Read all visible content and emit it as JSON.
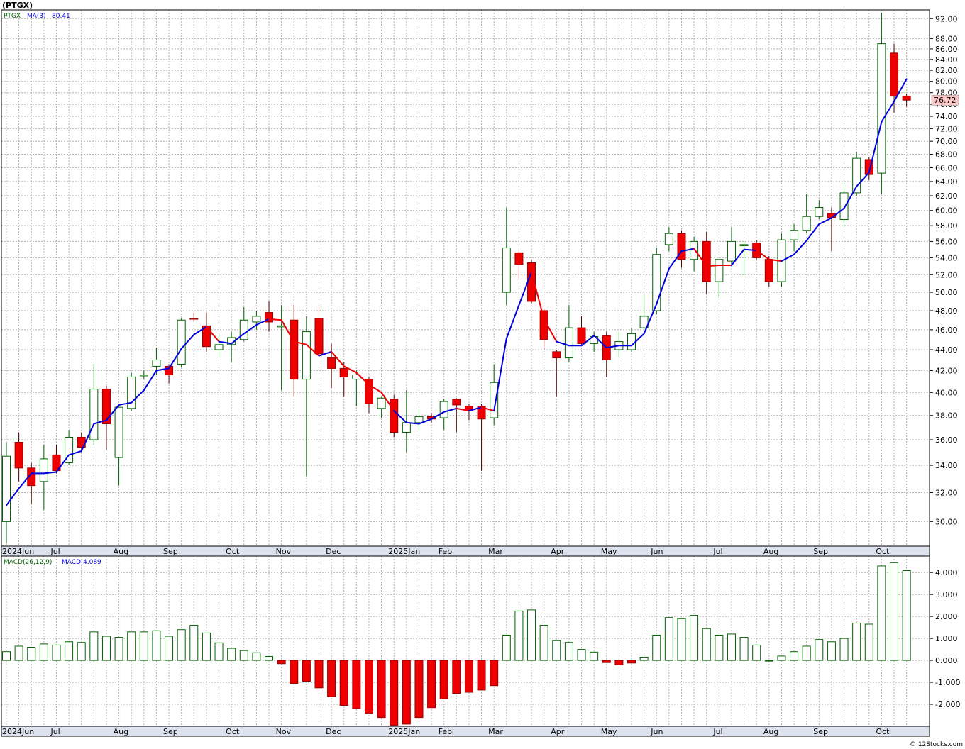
{
  "title": "(PTGX)",
  "legend": {
    "symbol": "PTGX",
    "ma_label": "MA(3)",
    "ma_value": "80.41",
    "macd_label": "MACD(26,12,9)",
    "macd_value_label": "MACD:4.089"
  },
  "last_price_tag": "76.72",
  "footer": "© 12Stocks.com",
  "colors": {
    "up": "#006400",
    "down": "#ee0000",
    "ma_up": "#0000dd",
    "ma_down": "#ee0000",
    "price_tag_bg": "#ffc8c8"
  },
  "chart_data": [
    {
      "type": "candlestick",
      "name": "price",
      "ylim": [
        28.4,
        93.8
      ],
      "scale": "log",
      "y_ticks": [
        "30.00",
        "32.00",
        "34.00",
        "36.00",
        "38.00",
        "40.00",
        "42.00",
        "44.00",
        "46.00",
        "48.00",
        "50.00",
        "52.00",
        "54.00",
        "56.00",
        "58.00",
        "60.00",
        "62.00",
        "64.00",
        "66.00",
        "68.00",
        "70.00",
        "72.00",
        "74.00",
        "76.00",
        "78.00",
        "80.00",
        "82.00",
        "84.00",
        "86.00",
        "88.00",
        "92.00"
      ],
      "month_labels": [
        {
          "label": "2024Jun",
          "week": 0
        },
        {
          "label": "Jul",
          "week": 4
        },
        {
          "label": "Aug",
          "week": 9
        },
        {
          "label": "Sep",
          "week": 13
        },
        {
          "label": "Oct",
          "week": 18
        },
        {
          "label": "Nov",
          "week": 22
        },
        {
          "label": "Dec",
          "week": 26
        },
        {
          "label": "2025Jan",
          "week": 31
        },
        {
          "label": "Feb",
          "week": 35
        },
        {
          "label": "Mar",
          "week": 39
        },
        {
          "label": "Apr",
          "week": 44
        },
        {
          "label": "May",
          "week": 48
        },
        {
          "label": "Jun",
          "week": 52
        },
        {
          "label": "Jul",
          "week": 57
        },
        {
          "label": "Aug",
          "week": 61
        },
        {
          "label": "Sep",
          "week": 65
        },
        {
          "label": "Oct",
          "week": 70
        }
      ],
      "ohlc": [
        [
          30.0,
          35.8,
          28.6,
          34.7
        ],
        [
          35.8,
          36.6,
          32.8,
          33.8
        ],
        [
          33.8,
          34.2,
          31.2,
          32.5
        ],
        [
          32.8,
          35.6,
          30.8,
          34.5
        ],
        [
          34.8,
          35.6,
          33.4,
          33.6
        ],
        [
          34.2,
          36.8,
          34.0,
          36.2
        ],
        [
          36.2,
          36.6,
          35.0,
          35.4
        ],
        [
          36.0,
          42.6,
          35.6,
          40.3
        ],
        [
          40.3,
          40.6,
          35.2,
          37.3
        ],
        [
          34.6,
          38.8,
          32.5,
          38.7
        ],
        [
          38.6,
          41.8,
          38.4,
          41.4
        ],
        [
          41.6,
          42.0,
          41.2,
          41.6
        ],
        [
          42.4,
          44.2,
          41.6,
          43.0
        ],
        [
          42.4,
          42.6,
          40.8,
          41.6
        ],
        [
          42.6,
          47.2,
          42.3,
          47.0
        ],
        [
          47.2,
          47.8,
          46.8,
          47.1
        ],
        [
          46.4,
          47.8,
          43.8,
          44.3
        ],
        [
          44.0,
          45.6,
          43.2,
          44.5
        ],
        [
          44.5,
          45.8,
          42.8,
          45.2
        ],
        [
          45.0,
          48.4,
          44.8,
          47.0
        ],
        [
          46.8,
          48.0,
          46.0,
          47.4
        ],
        [
          47.8,
          49.0,
          45.8,
          46.8
        ],
        [
          46.4,
          48.6,
          40.2,
          46.4
        ],
        [
          47.0,
          48.6,
          39.6,
          41.2
        ],
        [
          41.2,
          47.4,
          33.2,
          45.8
        ],
        [
          47.2,
          48.4,
          43.4,
          43.6
        ],
        [
          43.2,
          44.6,
          40.4,
          42.2
        ],
        [
          42.2,
          42.8,
          39.6,
          41.4
        ],
        [
          41.2,
          42.0,
          38.8,
          41.6
        ],
        [
          41.2,
          41.4,
          38.2,
          39.0
        ],
        [
          38.6,
          39.6,
          37.8,
          39.5
        ],
        [
          39.4,
          39.8,
          36.2,
          36.6
        ],
        [
          36.6,
          40.2,
          35.0,
          37.4
        ],
        [
          37.4,
          38.6,
          36.8,
          37.9
        ],
        [
          37.9,
          38.2,
          37.4,
          37.7
        ],
        [
          37.8,
          39.4,
          36.8,
          39.2
        ],
        [
          39.4,
          39.5,
          36.6,
          38.9
        ],
        [
          38.8,
          39.0,
          37.6,
          38.4
        ],
        [
          38.8,
          39.0,
          33.6,
          37.7
        ],
        [
          37.8,
          42.6,
          37.2,
          40.9
        ],
        [
          50.0,
          60.4,
          48.6,
          55.2
        ],
        [
          54.6,
          55.0,
          51.4,
          53.2
        ],
        [
          53.4,
          53.8,
          48.8,
          49.0
        ],
        [
          48.0,
          48.2,
          44.0,
          45.0
        ],
        [
          43.8,
          44.0,
          39.6,
          43.2
        ],
        [
          43.2,
          48.6,
          42.8,
          46.2
        ],
        [
          46.2,
          47.4,
          44.4,
          44.6
        ],
        [
          44.6,
          45.8,
          43.8,
          45.3
        ],
        [
          45.4,
          45.8,
          41.4,
          43.0
        ],
        [
          44.0,
          45.8,
          43.2,
          44.8
        ],
        [
          44.0,
          46.2,
          43.8,
          45.6
        ],
        [
          46.2,
          49.8,
          46.0,
          47.4
        ],
        [
          48.0,
          55.2,
          47.6,
          54.4
        ],
        [
          55.6,
          57.8,
          54.8,
          57.0
        ],
        [
          57.0,
          57.4,
          52.8,
          53.8
        ],
        [
          53.8,
          56.6,
          52.4,
          56.0
        ],
        [
          56.0,
          57.2,
          49.8,
          51.2
        ],
        [
          51.2,
          53.6,
          49.4,
          53.8
        ],
        [
          53.6,
          57.8,
          53.0,
          56.0
        ],
        [
          55.6,
          56.0,
          51.8,
          55.6
        ],
        [
          55.8,
          56.2,
          53.8,
          54.0
        ],
        [
          53.8,
          54.2,
          50.6,
          51.2
        ],
        [
          51.2,
          57.0,
          50.6,
          56.2
        ],
        [
          56.2,
          58.2,
          54.8,
          57.4
        ],
        [
          57.4,
          62.2,
          57.0,
          59.2
        ],
        [
          59.2,
          61.4,
          58.8,
          60.4
        ],
        [
          59.6,
          60.4,
          54.8,
          59.0
        ],
        [
          58.8,
          63.8,
          58.0,
          62.4
        ],
        [
          62.4,
          68.4,
          62.0,
          67.4
        ],
        [
          67.2,
          67.6,
          64.2,
          65.0
        ],
        [
          65.2,
          93.2,
          62.2,
          87.0
        ],
        [
          85.2,
          87.0,
          74.6,
          77.4
        ],
        [
          77.4,
          77.8,
          75.6,
          76.72
        ]
      ],
      "ma3": [
        31.1,
        32.3,
        33.4,
        33.4,
        33.5,
        34.8,
        35.1,
        37.3,
        37.6,
        38.9,
        39.1,
        40.2,
        42.0,
        42.2,
        44.1,
        45.5,
        46.3,
        44.8,
        44.6,
        45.6,
        46.5,
        47.1,
        47.0,
        44.8,
        44.5,
        43.4,
        43.8,
        42.4,
        41.8,
        40.7,
        40.0,
        38.4,
        37.4,
        37.3,
        37.7,
        38.3,
        38.6,
        38.4,
        38.7,
        38.4,
        45.1,
        48.6,
        52.3,
        47.1,
        44.8,
        44.4,
        44.4,
        45.4,
        44.2,
        44.4,
        44.4,
        45.6,
        48.7,
        52.7,
        54.8,
        55.1,
        53.0,
        53.1,
        53.1,
        55.0,
        54.9,
        53.8,
        53.6,
        54.4,
        56.1,
        58.2,
        59.0,
        60.3,
        63.3,
        65.3,
        73.1,
        76.5,
        80.41
      ],
      "ma3_trend": [
        "up",
        "up",
        "up",
        "up",
        "up",
        "up",
        "up",
        "up",
        "up",
        "up",
        "up",
        "up",
        "up",
        "up",
        "up",
        "up",
        "up",
        "down",
        "up",
        "up",
        "up",
        "up",
        "down",
        "down",
        "down",
        "down",
        "up",
        "down",
        "down",
        "down",
        "down",
        "down",
        "up",
        "up",
        "up",
        "up",
        "up",
        "down",
        "up",
        "down",
        "up",
        "up",
        "up",
        "down",
        "down",
        "up",
        "up",
        "up",
        "up",
        "up",
        "up",
        "up",
        "up",
        "up",
        "up",
        "up",
        "down",
        "down",
        "down",
        "up",
        "up",
        "down",
        "down",
        "up",
        "up",
        "up",
        "up",
        "up",
        "up",
        "up",
        "up",
        "up",
        "up"
      ]
    },
    {
      "type": "bar",
      "name": "MACD",
      "ylim": [
        -3.0,
        4.75
      ],
      "y_ticks": [
        "4.000",
        "3.000",
        "2.000",
        "1.000",
        "0.000",
        "-1.000",
        "-2.000"
      ],
      "values": [
        0.4,
        0.65,
        0.6,
        0.75,
        0.7,
        0.85,
        0.82,
        1.3,
        1.1,
        1.05,
        1.3,
        1.3,
        1.35,
        1.1,
        1.4,
        1.6,
        1.25,
        0.8,
        0.55,
        0.45,
        0.35,
        0.18,
        -0.15,
        -1.05,
        -0.95,
        -1.25,
        -1.65,
        -2.05,
        -2.2,
        -2.4,
        -2.6,
        -2.95,
        -2.9,
        -2.6,
        -2.15,
        -1.75,
        -1.5,
        -1.45,
        -1.35,
        -1.15,
        1.15,
        2.25,
        2.3,
        1.6,
        0.9,
        0.82,
        0.5,
        0.38,
        -0.1,
        -0.2,
        -0.12,
        0.15,
        1.15,
        1.95,
        1.9,
        2.05,
        1.45,
        1.15,
        1.2,
        1.05,
        0.7,
        0.0,
        0.2,
        0.4,
        0.65,
        0.95,
        0.85,
        1.0,
        1.7,
        1.65,
        4.3,
        4.45,
        4.089
      ]
    }
  ]
}
